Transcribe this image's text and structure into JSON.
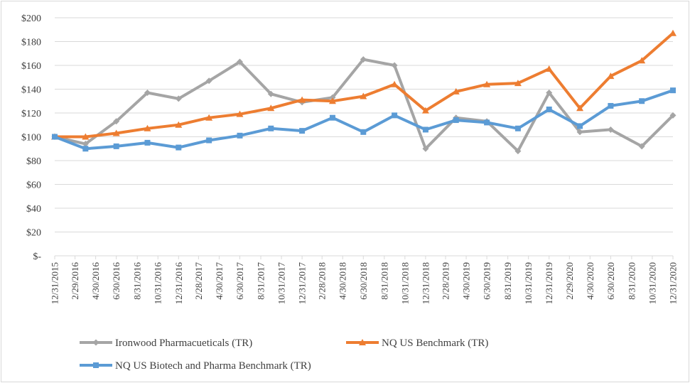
{
  "chart_data": {
    "type": "line",
    "title": "",
    "xlabel": "",
    "ylabel": "",
    "ylim": [
      0,
      200
    ],
    "yticks": [
      0,
      20,
      40,
      60,
      80,
      100,
      120,
      140,
      160,
      180,
      200
    ],
    "ytick_labels": [
      "$-",
      "$20",
      "$40",
      "$60",
      "$80",
      "$100",
      "$120",
      "$140",
      "$160",
      "$180",
      "$200"
    ],
    "categories": [
      "12/31/2015",
      "2/29/2016",
      "4/30/2016",
      "6/30/2016",
      "8/31/2016",
      "10/31/2016",
      "12/31/2016",
      "2/28/2017",
      "4/30/2017",
      "6/30/2017",
      "8/31/2017",
      "10/31/2017",
      "12/31/2017",
      "2/28/2018",
      "4/30/2018",
      "6/30/2018",
      "8/31/2018",
      "10/31/2018",
      "12/31/2018",
      "2/28/2019",
      "4/30/2019",
      "6/30/2019",
      "8/31/2019",
      "10/31/2019",
      "12/31/2019",
      "2/29/2020",
      "4/30/2020",
      "6/30/2020",
      "8/31/2020",
      "10/31/2020",
      "12/31/2020"
    ],
    "grid": true,
    "legend_position": "bottom",
    "series": [
      {
        "name": "Ironwood Pharmacueticals (TR)",
        "color": "#a5a5a5",
        "marker": "diamond",
        "points": [
          [
            "12/31/2015",
            100
          ],
          [
            "3/31/2016",
            94
          ],
          [
            "6/30/2016",
            113
          ],
          [
            "9/30/2016",
            137
          ],
          [
            "12/31/2016",
            132
          ],
          [
            "3/31/2017",
            147
          ],
          [
            "6/30/2017",
            163
          ],
          [
            "9/30/2017",
            136
          ],
          [
            "12/31/2017",
            129
          ],
          [
            "3/31/2018",
            133
          ],
          [
            "6/30/2018",
            165
          ],
          [
            "9/30/2018",
            160
          ],
          [
            "12/31/2018",
            90
          ],
          [
            "3/31/2019",
            116
          ],
          [
            "6/30/2019",
            113
          ],
          [
            "9/30/2019",
            88
          ],
          [
            "12/31/2019",
            137
          ],
          [
            "3/31/2020",
            104
          ],
          [
            "6/30/2020",
            106
          ],
          [
            "9/30/2020",
            92
          ],
          [
            "12/31/2020",
            118
          ]
        ]
      },
      {
        "name": "NQ US Benchmark (TR)",
        "color": "#ed7d31",
        "marker": "triangle",
        "points": [
          [
            "12/31/2015",
            100
          ],
          [
            "3/31/2016",
            100
          ],
          [
            "6/30/2016",
            103
          ],
          [
            "9/30/2016",
            107
          ],
          [
            "12/31/2016",
            110
          ],
          [
            "3/31/2017",
            116
          ],
          [
            "6/30/2017",
            119
          ],
          [
            "9/30/2017",
            124
          ],
          [
            "12/31/2017",
            131
          ],
          [
            "3/31/2018",
            130
          ],
          [
            "6/30/2018",
            134
          ],
          [
            "9/30/2018",
            144
          ],
          [
            "12/31/2018",
            122
          ],
          [
            "3/31/2019",
            138
          ],
          [
            "6/30/2019",
            144
          ],
          [
            "9/30/2019",
            145
          ],
          [
            "12/31/2019",
            157
          ],
          [
            "3/31/2020",
            124
          ],
          [
            "6/30/2020",
            151
          ],
          [
            "9/30/2020",
            164
          ],
          [
            "12/31/2020",
            187
          ]
        ]
      },
      {
        "name": "NQ US Biotech and Pharma Benchmark (TR)",
        "color": "#5b9bd5",
        "marker": "square",
        "points": [
          [
            "12/31/2015",
            100
          ],
          [
            "3/31/2016",
            90
          ],
          [
            "6/30/2016",
            92
          ],
          [
            "9/30/2016",
            95
          ],
          [
            "12/31/2016",
            91
          ],
          [
            "3/31/2017",
            97
          ],
          [
            "6/30/2017",
            101
          ],
          [
            "9/30/2017",
            107
          ],
          [
            "12/31/2017",
            105
          ],
          [
            "3/31/2018",
            116
          ],
          [
            "6/30/2018",
            104
          ],
          [
            "9/30/2018",
            118
          ],
          [
            "12/31/2018",
            106
          ],
          [
            "3/31/2019",
            114
          ],
          [
            "6/30/2019",
            112
          ],
          [
            "9/30/2019",
            107
          ],
          [
            "12/31/2019",
            123
          ],
          [
            "3/31/2020",
            109
          ],
          [
            "6/30/2020",
            126
          ],
          [
            "9/30/2020",
            130
          ],
          [
            "12/31/2020",
            139
          ]
        ]
      }
    ]
  }
}
